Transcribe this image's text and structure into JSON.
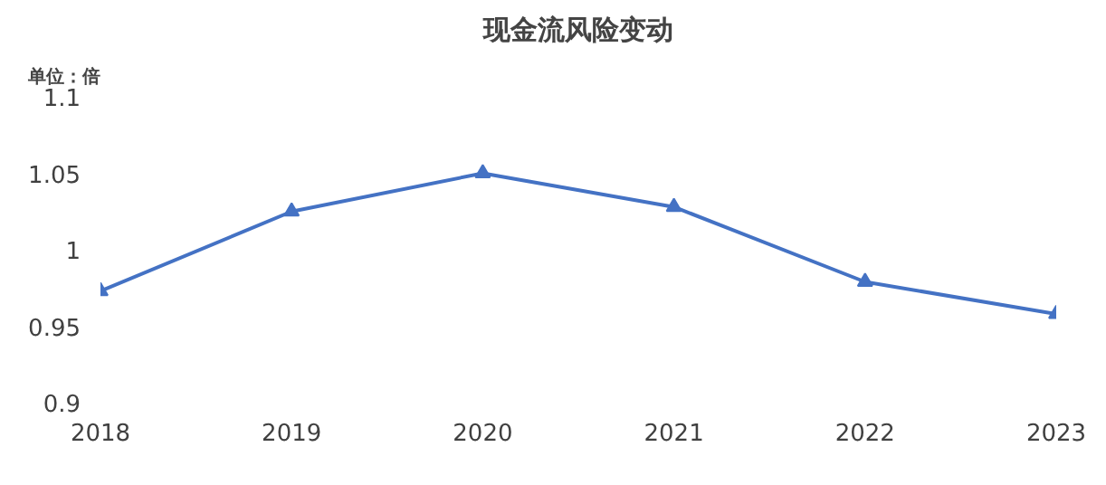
{
  "chart_data": {
    "type": "line",
    "title": "现金流风险变动",
    "ylabel": "单位：倍",
    "categories": [
      "2018",
      "2019",
      "2020",
      "2021",
      "2022",
      "2023"
    ],
    "series": [
      {
        "color": "#4472c4",
        "values": [
          0.973,
          1.025,
          1.05,
          1.028,
          0.979,
          0.958
        ]
      }
    ],
    "ylim": [
      0.9,
      1.1
    ],
    "yticks": [
      0.9,
      0.95,
      1,
      1.05,
      1.1
    ],
    "marker": "triangle",
    "line_style": "solid",
    "grid": false
  }
}
